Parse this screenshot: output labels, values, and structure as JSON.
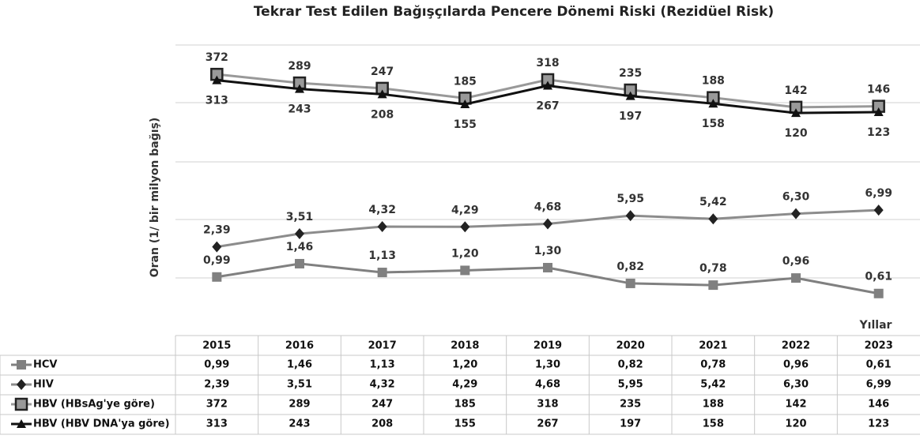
{
  "chart_data": {
    "type": "line",
    "title": "Tekrar Test Edilen Bağışçılarda Pencere Dönemi Riski (Rezidüel Risk)",
    "y_label": "Oran (1/ bir milyon bağış)",
    "x_label": "Yıllar",
    "log_scale": true,
    "ylim": [
      0.2,
      1300
    ],
    "categories": [
      "2015",
      "2016",
      "2017",
      "2018",
      "2019",
      "2020",
      "2021",
      "2022",
      "2023"
    ],
    "series": [
      {
        "name": "HCV",
        "color": "#808080",
        "marker": "square",
        "label_pos": "above",
        "values": [
          0.99,
          1.46,
          1.13,
          1.2,
          1.3,
          0.82,
          0.78,
          0.96,
          0.61
        ],
        "value_labels": [
          "0,99",
          "1,46",
          "1,13",
          "1,20",
          "1,30",
          "0,82",
          "0,78",
          "0,96",
          "0,61"
        ]
      },
      {
        "name": "HIV",
        "color": "#8c8c8c",
        "marker": "diamond",
        "label_pos": "above",
        "values": [
          2.39,
          3.51,
          4.32,
          4.29,
          4.68,
          5.95,
          5.42,
          6.3,
          6.99
        ],
        "value_labels": [
          "2,39",
          "3,51",
          "4,32",
          "4,29",
          "4,68",
          "5,95",
          "5,42",
          "6,30",
          "6,99"
        ]
      },
      {
        "name": "HBV (HBsAg'ye göre)",
        "color": "#999999",
        "marker": "boxed-square",
        "label_pos": "above",
        "values": [
          372,
          289,
          247,
          185,
          318,
          235,
          188,
          142,
          146
        ]
      },
      {
        "name": "HBV (HBV DNA'ya göre)",
        "color": "#111111",
        "marker": "triangle",
        "label_pos": "below",
        "values": [
          313,
          243,
          208,
          155,
          267,
          197,
          158,
          120,
          123
        ]
      }
    ]
  }
}
